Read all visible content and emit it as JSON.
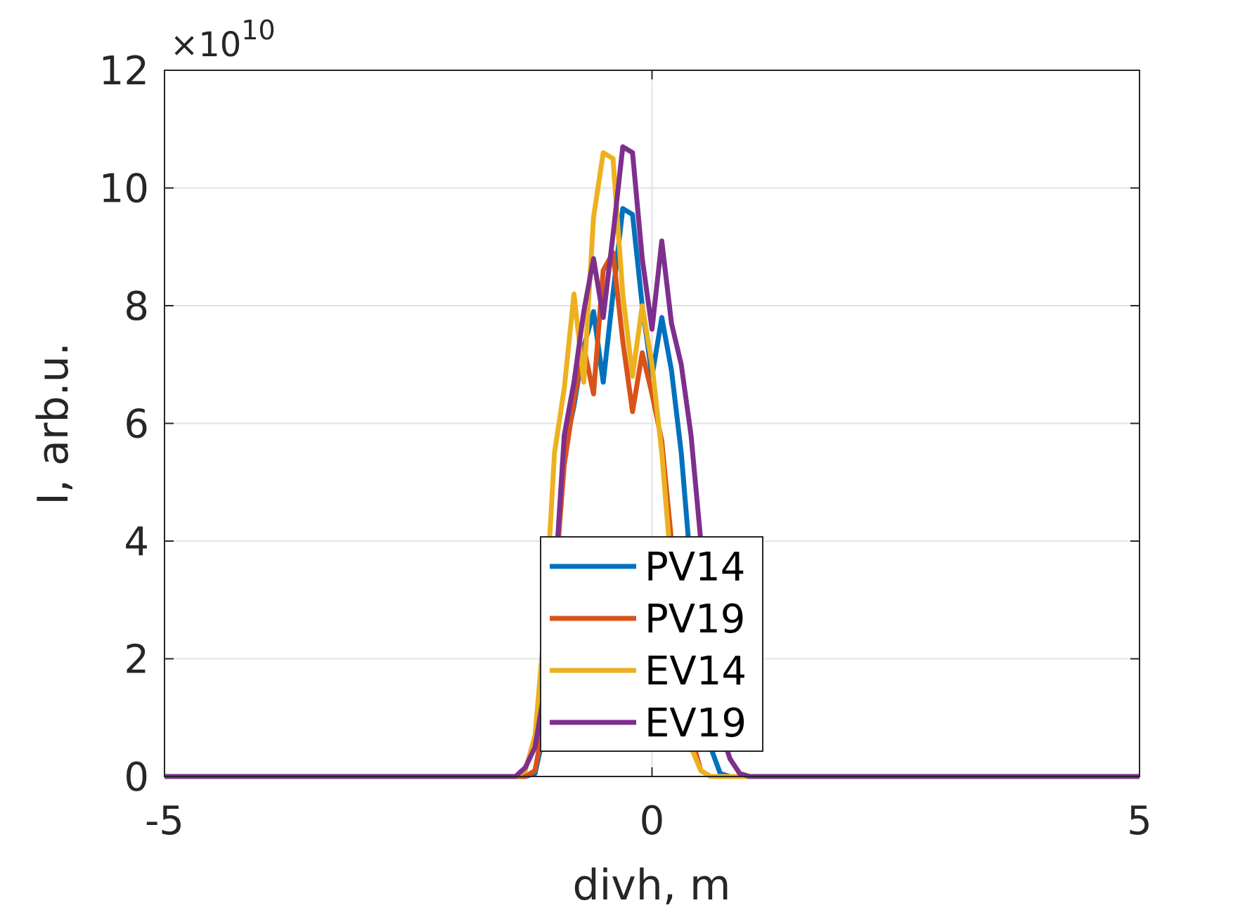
{
  "chart_data": {
    "type": "line",
    "title": "",
    "xlabel": "divh, m",
    "ylabel": "I, arb.u.",
    "xlim": [
      -5,
      5
    ],
    "ylim": [
      0,
      12
    ],
    "y_exponent_label": "×10",
    "y_exponent": "10",
    "y_scale_factor": 10000000000,
    "x_ticks": [
      -5,
      0,
      5
    ],
    "y_ticks": [
      0,
      2,
      4,
      6,
      8,
      10,
      12
    ],
    "x_tick_labels": [
      "-5",
      "0",
      "5"
    ],
    "y_tick_labels": [
      "0",
      "2",
      "4",
      "6",
      "8",
      "10",
      "12"
    ],
    "grid": true,
    "legend_position": "bottom-center",
    "x": [
      -5,
      -1.4,
      -1.3,
      -1.2,
      -1.1,
      -1.0,
      -0.9,
      -0.8,
      -0.7,
      -0.6,
      -0.5,
      -0.4,
      -0.3,
      -0.2,
      -0.1,
      0.0,
      0.1,
      0.2,
      0.3,
      0.4,
      0.5,
      0.6,
      0.7,
      0.8,
      0.9,
      1.0,
      1.1,
      1.2,
      1.3,
      1.4,
      5
    ],
    "series": [
      {
        "name": "PV14",
        "color": "#0072BD",
        "values": [
          0,
          0,
          0,
          0.05,
          0.8,
          3.0,
          5.5,
          6.3,
          7.3,
          7.9,
          6.7,
          8.2,
          9.65,
          9.55,
          8.0,
          6.8,
          7.8,
          6.9,
          5.5,
          3.5,
          2.0,
          0.5,
          0.05,
          0,
          0,
          0,
          0,
          0,
          0,
          0,
          0
        ]
      },
      {
        "name": "PV19",
        "color": "#D95319",
        "values": [
          0,
          0,
          0,
          0.1,
          1.0,
          3.2,
          5.3,
          6.4,
          7.3,
          6.5,
          8.6,
          8.9,
          7.4,
          6.2,
          7.2,
          6.5,
          5.7,
          4.0,
          2.3,
          0.7,
          0.1,
          0,
          0,
          0,
          0,
          0,
          0,
          0,
          0,
          0,
          0
        ]
      },
      {
        "name": "EV14",
        "color": "#EDB120",
        "values": [
          0,
          0,
          0.1,
          0.7,
          2.6,
          5.5,
          6.6,
          8.2,
          6.7,
          9.5,
          10.6,
          10.5,
          8.2,
          6.8,
          8.0,
          7.0,
          5.5,
          3.5,
          1.8,
          0.5,
          0.1,
          0,
          0,
          0,
          0,
          0,
          0,
          0,
          0,
          0,
          0
        ]
      },
      {
        "name": "EV19",
        "color": "#7E2F8E",
        "values": [
          0,
          0,
          0.15,
          0.5,
          1.5,
          3.2,
          5.8,
          6.7,
          7.9,
          8.8,
          7.8,
          9.2,
          10.7,
          10.6,
          8.8,
          7.6,
          9.1,
          7.7,
          7.0,
          5.8,
          4.0,
          2.0,
          0.8,
          0.3,
          0.05,
          0,
          0,
          0,
          0,
          0,
          0
        ]
      }
    ]
  }
}
